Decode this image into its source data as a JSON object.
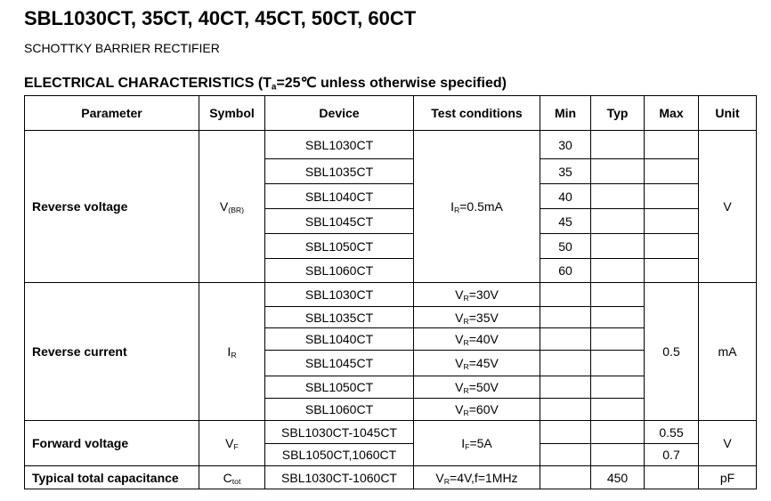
{
  "title": "SBL1030CT, 35CT, 40CT, 45CT, 50CT, 60CT",
  "subtitle": "SCHOTTKY BARRIER RECTIFIER",
  "section": {
    "prefix": "ELECTRICAL CHARACTERISTICS (T",
    "sub": "a",
    "suffix": "=25℃ unless otherwise specified)"
  },
  "columns": [
    "Parameter",
    "Symbol",
    "Device",
    "Test conditions",
    "Min",
    "Typ",
    "Max",
    "Unit"
  ],
  "groups": [
    {
      "parameter": "Reverse voltage",
      "symbol": {
        "main": "V",
        "sub": "(BR)"
      },
      "unit": "V",
      "shared_condition": {
        "main": "I",
        "sub": "R",
        "rest": "=0.5mA"
      },
      "rows": [
        {
          "device": "SBL1030CT",
          "min": "30"
        },
        {
          "device": "SBL1035CT",
          "min": "35"
        },
        {
          "device": "SBL1040CT",
          "min": "40"
        },
        {
          "device": "SBL1045CT",
          "min": "45"
        },
        {
          "device": "SBL1050CT",
          "min": "50"
        },
        {
          "device": "SBL1060CT",
          "min": "60"
        }
      ]
    },
    {
      "parameter": "Reverse current",
      "symbol": {
        "main": "I",
        "sub": "R"
      },
      "unit": "mA",
      "shared_max": "0.5",
      "rows": [
        {
          "device": "SBL1030CT",
          "condition": {
            "main": "V",
            "sub": "R",
            "rest": "=30V"
          }
        },
        {
          "device": "SBL1035CT",
          "condition": {
            "main": "V",
            "sub": "R",
            "rest": "=35V"
          }
        },
        {
          "device": "SBL1040CT",
          "condition": {
            "main": "V",
            "sub": "R",
            "rest": "=40V"
          }
        },
        {
          "device": "SBL1045CT",
          "condition": {
            "main": "V",
            "sub": "R",
            "rest": "=45V"
          }
        },
        {
          "device": "SBL1050CT",
          "condition": {
            "main": "V",
            "sub": "R",
            "rest": "=50V"
          }
        },
        {
          "device": "SBL1060CT",
          "condition": {
            "main": "V",
            "sub": "R",
            "rest": "=60V"
          }
        }
      ]
    },
    {
      "parameter": "Forward voltage",
      "symbol": {
        "main": "V",
        "sub": "F"
      },
      "unit": "V",
      "shared_condition": {
        "main": "I",
        "sub": "F",
        "rest": "=5A"
      },
      "rows": [
        {
          "device": "SBL1030CT-1045CT",
          "max": "0.55"
        },
        {
          "device": "SBL1050CT,1060CT",
          "max": "0.7"
        }
      ]
    },
    {
      "parameter": "Typical total capacitance",
      "symbol": {
        "main": "C",
        "sub": "tot"
      },
      "unit": "pF",
      "rows": [
        {
          "device": "SBL1030CT-1060CT",
          "condition": {
            "main": "V",
            "sub": "R",
            "rest": "=4V,f=1MHz"
          },
          "typ": "450"
        }
      ]
    }
  ]
}
